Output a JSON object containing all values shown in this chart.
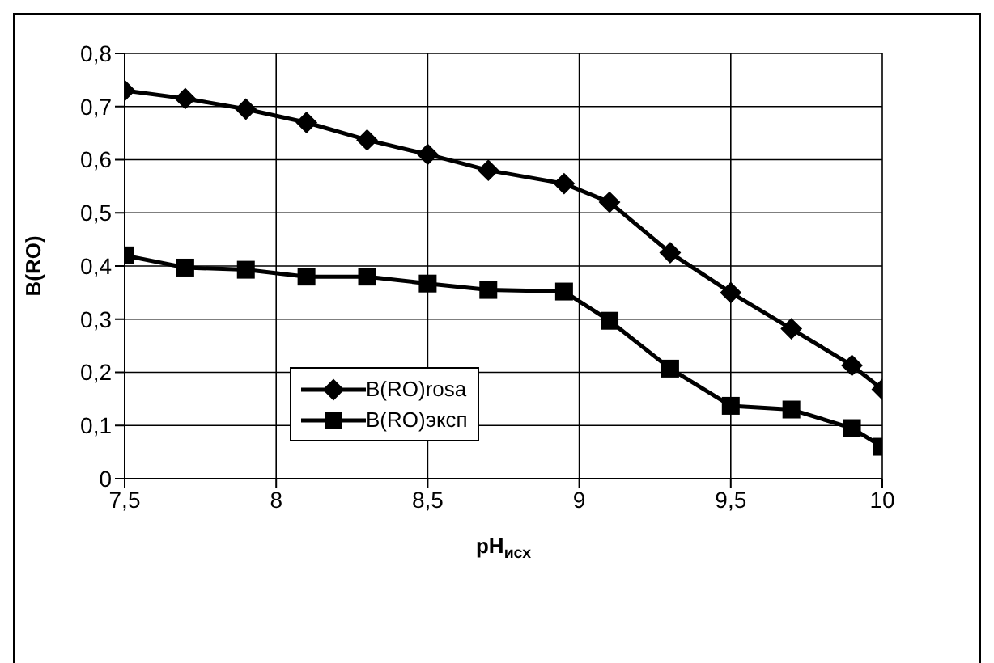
{
  "chart_data": {
    "type": "line",
    "xlabel": "pH$_{исх}$",
    "ylabel": "B(RO)",
    "x": [
      7.5,
      7.7,
      7.9,
      8.1,
      8.3,
      8.5,
      8.7,
      8.95,
      9.1,
      9.3,
      9.5,
      9.7,
      9.9,
      10
    ],
    "series": [
      {
        "name": "B(RO)rosa",
        "color": "#000000",
        "marker": "diamond",
        "values": [
          0.73,
          0.715,
          0.695,
          0.67,
          0.637,
          0.61,
          0.58,
          0.555,
          0.52,
          0.425,
          0.35,
          0.282,
          0.213,
          0.168
        ]
      },
      {
        "name": "B(RO)эксп",
        "color": "#000000",
        "marker": "square",
        "values": [
          0.42,
          0.397,
          0.393,
          0.38,
          0.38,
          0.367,
          0.355,
          0.352,
          0.297,
          0.207,
          0.137,
          0.13,
          0.095,
          0.06
        ]
      }
    ],
    "xlim": [
      7.5,
      10
    ],
    "xticks": [
      {
        "value": 7.5,
        "label": "7,5"
      },
      8,
      {
        "value": 8.5,
        "label": "8,5"
      },
      9,
      {
        "value": 9.5,
        "label": "9,5"
      },
      10
    ],
    "ylim": [
      0,
      0.8
    ],
    "yticks": [
      0,
      {
        "value": 0.1,
        "label": "0,1"
      },
      {
        "value": 0.2,
        "label": "0,2"
      },
      {
        "value": 0.3,
        "label": "0,3"
      },
      {
        "value": 0.4,
        "label": "0,4"
      },
      {
        "value": 0.5,
        "label": "0,5"
      },
      {
        "value": 0.6,
        "label": "0,6"
      },
      {
        "value": 0.7,
        "label": "0,7"
      },
      {
        "value": 0.8,
        "label": "0,8"
      }
    ],
    "grid": true,
    "legend": "bottom left",
    "line_style": "solid"
  }
}
